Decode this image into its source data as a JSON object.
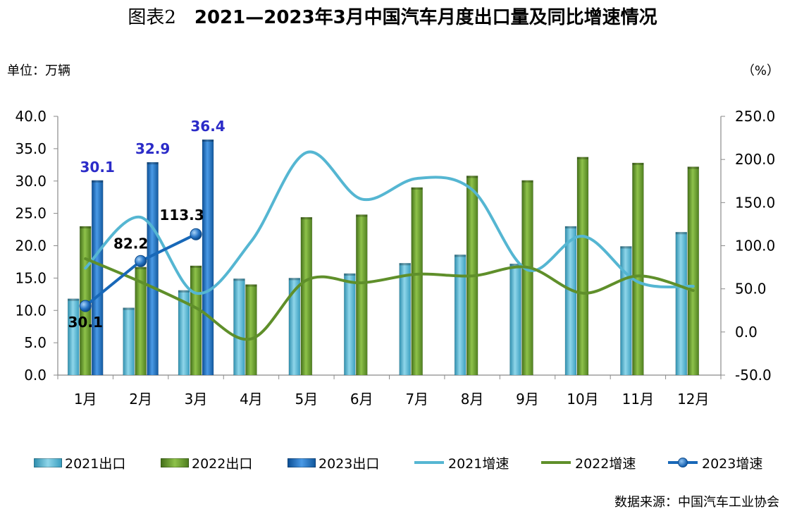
{
  "header": {
    "title_prefix": "图表2",
    "title_main": "2021—2023年3月中国汽车月度出口量及同比增速情况",
    "unit_left": "单位：万辆",
    "unit_right": "（%）",
    "source": "数据来源：中国汽车工业协会"
  },
  "colors": {
    "bar_2021": "#4fb3cf",
    "bar_2022": "#6a9a2a",
    "bar_2023": "#1868b8",
    "line_2021": "#55b6d2",
    "line_2022": "#5f8f2a",
    "line_2023": "#1868b8",
    "label_2023_bar": "#2b2bc8"
  },
  "legend": {
    "items": [
      "2021出口",
      "2022出口",
      "2023出口",
      "2021增速",
      "2022增速",
      "2023增速"
    ]
  },
  "chart_data": {
    "type": "bar",
    "categories": [
      "1月",
      "2月",
      "3月",
      "4月",
      "5月",
      "6月",
      "7月",
      "8月",
      "9月",
      "10月",
      "11月",
      "12月"
    ],
    "y_left": {
      "min": 0,
      "max": 40,
      "step": 5,
      "ticks": [
        "0.0",
        "5.0",
        "10.0",
        "15.0",
        "20.0",
        "25.0",
        "30.0",
        "35.0",
        "40.0"
      ]
    },
    "y_right": {
      "min": -50,
      "max": 250,
      "step": 50,
      "ticks": [
        "-50.0",
        "0.0",
        "50.0",
        "100.0",
        "150.0",
        "200.0",
        "250.0"
      ]
    },
    "bars": [
      {
        "name": "2021出口",
        "values": [
          11.8,
          10.4,
          13.1,
          14.9,
          15.0,
          15.7,
          17.3,
          18.6,
          17.2,
          23.0,
          19.9,
          22.1
        ]
      },
      {
        "name": "2022出口",
        "values": [
          23.0,
          16.7,
          16.9,
          14.0,
          24.4,
          24.8,
          29.0,
          30.8,
          30.1,
          33.7,
          32.8,
          32.2
        ]
      },
      {
        "name": "2023出口",
        "values": [
          30.1,
          32.9,
          36.4,
          null,
          null,
          null,
          null,
          null,
          null,
          null,
          null,
          null
        ]
      }
    ],
    "lines": [
      {
        "name": "2021增速",
        "values": [
          74,
          133,
          45,
          105,
          208,
          154,
          178,
          165,
          72,
          111,
          58,
          53
        ]
      },
      {
        "name": "2022增速",
        "values": [
          85,
          58,
          28,
          -8,
          60,
          57,
          67,
          65,
          75,
          45,
          65,
          48
        ]
      },
      {
        "name": "2023增速",
        "values": [
          30.1,
          82.2,
          113.3,
          null,
          null,
          null,
          null,
          null,
          null,
          null,
          null,
          null
        ]
      }
    ],
    "bar_labels_2023": [
      "30.1",
      "32.9",
      "36.4"
    ],
    "line_labels_2023": [
      "30.1",
      "82.2",
      "113.3"
    ]
  }
}
